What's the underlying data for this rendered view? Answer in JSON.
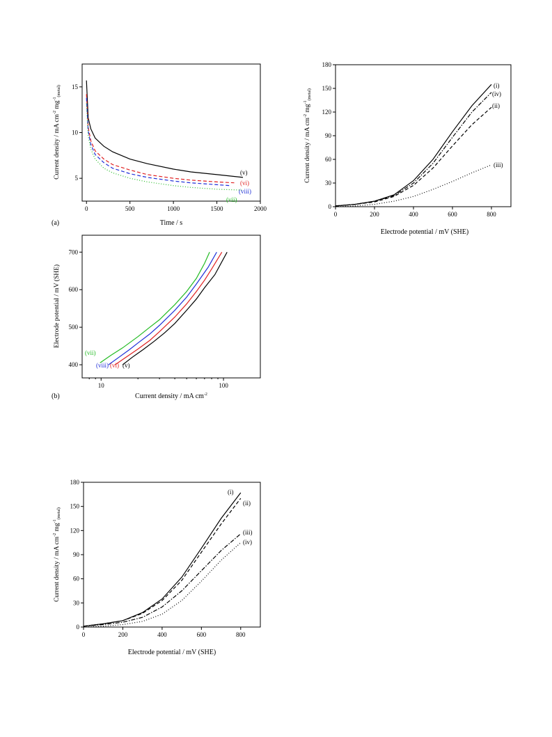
{
  "colors": {
    "black": "#000000",
    "red": "#e02020",
    "blue": "#1f2fd8",
    "green": "#22bb22"
  },
  "chart_data": [
    {
      "id": "a",
      "type": "line",
      "panel_label": "(a)",
      "xlabel": "Time / s",
      "ylabel": {
        "main": "Current density / mA cm",
        "sup1": "-2",
        "mid": " mg",
        "sup2": "-1",
        "sub": "(metal)"
      },
      "xlim": [
        -50,
        2000
      ],
      "ylim": [
        2.5,
        17.5
      ],
      "xticks": [
        0,
        500,
        1000,
        1500,
        2000
      ],
      "yticks": [
        5,
        10,
        15
      ],
      "series": [
        {
          "name": "(v)",
          "color": "#000000",
          "style": "solid",
          "x": [
            0,
            20,
            50,
            100,
            200,
            300,
            500,
            700,
            1000,
            1200,
            1500,
            1800
          ],
          "values": [
            15.7,
            11.6,
            10.4,
            9.4,
            8.5,
            7.9,
            7.1,
            6.6,
            6.0,
            5.7,
            5.4,
            5.1
          ]
        },
        {
          "name": "(vi)",
          "color": "#e02020",
          "style": "dash",
          "x": [
            0,
            20,
            50,
            100,
            200,
            300,
            500,
            700,
            1000,
            1200,
            1500,
            1700
          ],
          "values": [
            14.2,
            10.6,
            9.1,
            8.0,
            7.1,
            6.5,
            5.9,
            5.4,
            5.0,
            4.8,
            4.6,
            4.5
          ]
        },
        {
          "name": "(viii)",
          "color": "#1f2fd8",
          "style": "dash",
          "x": [
            0,
            20,
            50,
            100,
            200,
            300,
            500,
            700,
            1000,
            1200,
            1500,
            1650
          ],
          "values": [
            13.8,
            10.2,
            8.7,
            7.6,
            6.7,
            6.1,
            5.5,
            5.1,
            4.7,
            4.5,
            4.3,
            4.2
          ]
        },
        {
          "name": "(vii)",
          "color": "#22bb22",
          "style": "dot",
          "x": [
            0,
            20,
            50,
            100,
            200,
            300,
            500,
            700,
            1000,
            1200,
            1500,
            1800
          ],
          "values": [
            13.2,
            9.6,
            8.2,
            7.1,
            6.1,
            5.6,
            5.0,
            4.6,
            4.2,
            4.0,
            3.8,
            3.7
          ]
        }
      ]
    },
    {
      "id": "b",
      "type": "line",
      "panel_label": "(b)",
      "xlabel": {
        "main": "Current density / mA cm",
        "sup": "-2"
      },
      "ylabel": "Electrode potential / mV (SHE)",
      "xscale": "log",
      "xlim": [
        7,
        200
      ],
      "ylim": [
        365,
        745
      ],
      "xticks": [
        10,
        100
      ],
      "yticks": [
        400,
        500,
        600,
        700
      ],
      "series": [
        {
          "name": "(vii)",
          "color": "#22bb22",
          "x": [
            9.8,
            12,
            15,
            20,
            25,
            30,
            40,
            50,
            60,
            70,
            77
          ],
          "values": [
            405,
            425,
            445,
            475,
            500,
            520,
            560,
            595,
            630,
            670,
            700
          ]
        },
        {
          "name": "(viii)",
          "color": "#1f2fd8",
          "x": [
            11.5,
            14,
            17,
            20,
            25,
            30,
            40,
            50,
            60,
            75,
            88
          ],
          "values": [
            400,
            420,
            440,
            458,
            482,
            505,
            545,
            580,
            615,
            660,
            700
          ]
        },
        {
          "name": "(vi)",
          "color": "#e02020",
          "x": [
            13,
            16,
            20,
            25,
            30,
            40,
            50,
            60,
            70,
            80,
            97
          ],
          "values": [
            400,
            420,
            442,
            465,
            488,
            527,
            562,
            595,
            625,
            655,
            700
          ]
        },
        {
          "name": "(v)",
          "color": "#000000",
          "x": [
            15,
            18,
            22,
            27,
            33,
            40,
            50,
            60,
            70,
            85,
            107
          ],
          "values": [
            400,
            420,
            440,
            462,
            485,
            510,
            545,
            575,
            605,
            640,
            700
          ]
        }
      ]
    },
    {
      "id": "c",
      "type": "line",
      "xlabel": "Electrode potential / mV (SHE)",
      "ylabel": {
        "main": "Current density / mA cm",
        "sup1": "-2",
        "mid": " mg",
        "sup2": "-1",
        "sub": "(metal)"
      },
      "xlim": [
        0,
        900
      ],
      "ylim": [
        0,
        180
      ],
      "xticks": [
        0,
        200,
        400,
        600,
        800
      ],
      "yticks": [
        0,
        30,
        60,
        90,
        120,
        150,
        180
      ],
      "series": [
        {
          "name": "(i)",
          "color": "#000000",
          "style": "solid",
          "x": [
            0,
            100,
            200,
            300,
            400,
            500,
            600,
            700,
            800
          ],
          "values": [
            1,
            3,
            7,
            15,
            33,
            60,
            95,
            128,
            155
          ]
        },
        {
          "name": "(iv)",
          "color": "#000000",
          "style": "dashdot",
          "x": [
            0,
            100,
            200,
            300,
            400,
            500,
            600,
            700,
            800
          ],
          "values": [
            1,
            3,
            7,
            14,
            30,
            55,
            88,
            120,
            145
          ]
        },
        {
          "name": "(ii)",
          "color": "#000000",
          "style": "dash",
          "x": [
            0,
            100,
            200,
            300,
            400,
            500,
            600,
            700,
            800
          ],
          "values": [
            1,
            3,
            6,
            13,
            27,
            49,
            77,
            104,
            126
          ]
        },
        {
          "name": "(iii)",
          "color": "#000000",
          "style": "dot",
          "x": [
            0,
            100,
            200,
            300,
            400,
            500,
            600,
            700,
            800
          ],
          "values": [
            0,
            1,
            3,
            7,
            13,
            22,
            32,
            43,
            53
          ]
        }
      ]
    },
    {
      "id": "d",
      "type": "line",
      "xlabel": "Electrode potential / mV (SHE)",
      "ylabel": {
        "main": "Current density / mA cm",
        "sup1": "-2",
        "mid": " mg",
        "sup2": "-1",
        "sub": "(metal)"
      },
      "xlim": [
        0,
        900
      ],
      "ylim": [
        0,
        180
      ],
      "xticks": [
        0,
        200,
        400,
        600,
        800
      ],
      "yticks": [
        0,
        30,
        60,
        90,
        120,
        150,
        180
      ],
      "series": [
        {
          "name": "(i)",
          "color": "#000000",
          "style": "solid",
          "x": [
            0,
            100,
            200,
            300,
            400,
            500,
            600,
            700,
            800
          ],
          "values": [
            1,
            4,
            8,
            18,
            35,
            62,
            98,
            135,
            167
          ]
        },
        {
          "name": "(ii)",
          "color": "#000000",
          "style": "dash",
          "x": [
            0,
            100,
            200,
            300,
            400,
            500,
            600,
            700,
            800
          ],
          "values": [
            1,
            4,
            8,
            17,
            33,
            58,
            93,
            128,
            160
          ]
        },
        {
          "name": "(iii)",
          "color": "#000000",
          "style": "dashdot",
          "x": [
            0,
            100,
            200,
            300,
            400,
            500,
            600,
            700,
            800
          ],
          "values": [
            1,
            3,
            6,
            12,
            25,
            45,
            70,
            95,
            116
          ]
        },
        {
          "name": "(iv)",
          "color": "#000000",
          "style": "dot",
          "x": [
            0,
            100,
            200,
            300,
            400,
            500,
            600,
            700,
            800
          ],
          "values": [
            0,
            1,
            3,
            7,
            16,
            33,
            57,
            83,
            105
          ]
        }
      ]
    }
  ]
}
